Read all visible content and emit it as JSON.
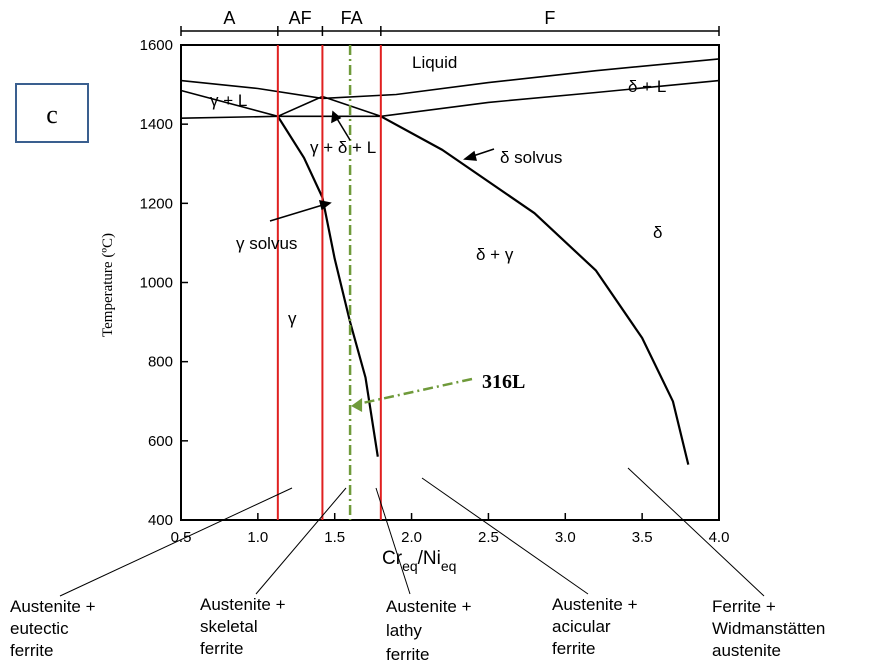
{
  "panel_label": "c",
  "chart_data": {
    "type": "phase-diagram",
    "xlabel_main": "Cr",
    "xlabel_sub1": "eq",
    "xlabel_slash": "/Ni",
    "xlabel_sub2": "eq",
    "ylabel": "Temperature (ºC)",
    "x_ticks": [
      "0.5",
      "1.0",
      "1.5",
      "2.0",
      "2.5",
      "3.0",
      "3.5",
      "4.0"
    ],
    "y_ticks": [
      "400",
      "600",
      "800",
      "1000",
      "1200",
      "1400",
      "1600"
    ],
    "xlim": [
      0.5,
      4.0
    ],
    "ylim": [
      400,
      1600
    ],
    "modes": [
      {
        "label": "A",
        "from": 0.5,
        "to": 1.13
      },
      {
        "label": "AF",
        "from": 1.13,
        "to": 1.42
      },
      {
        "label": "FA",
        "from": 1.42,
        "to": 1.8
      },
      {
        "label": "F",
        "from": 1.8,
        "to": 4.0
      }
    ],
    "mode_boundaries": [
      1.13,
      1.42,
      1.8
    ],
    "alloy": {
      "label": "316L",
      "x": 1.6
    },
    "region_labels": {
      "liquid": "Liquid",
      "delta_l": "δ + L",
      "gamma_l": "γ + L",
      "gamma_delta_l": "γ + δ + L",
      "delta_solvus": "δ solvus",
      "gamma_solvus": "γ solvus",
      "delta_gamma": "δ + γ",
      "delta": "δ",
      "gamma": "γ"
    },
    "curves": {
      "liquidus_upper": [
        [
          0.5,
          1510
        ],
        [
          1.0,
          1490
        ],
        [
          1.42,
          1465
        ],
        [
          1.9,
          1475
        ],
        [
          2.5,
          1505
        ],
        [
          3.2,
          1535
        ],
        [
          4.0,
          1565
        ]
      ],
      "liquidus_lower": [
        [
          0.5,
          1485
        ],
        [
          1.13,
          1420
        ],
        [
          1.42,
          1470
        ],
        [
          1.8,
          1420
        ],
        [
          2.5,
          1455
        ],
        [
          3.2,
          1480
        ],
        [
          4.0,
          1510
        ]
      ],
      "solidus": [
        [
          0.5,
          1415
        ],
        [
          1.13,
          1420
        ],
        [
          1.8,
          1420
        ]
      ],
      "gamma_solvus": [
        [
          1.13,
          1420
        ],
        [
          1.3,
          1315
        ],
        [
          1.42,
          1215
        ],
        [
          1.5,
          1060
        ],
        [
          1.6,
          900
        ],
        [
          1.7,
          760
        ],
        [
          1.78,
          560
        ]
      ],
      "delta_solvus": [
        [
          1.8,
          1420
        ],
        [
          2.2,
          1335
        ],
        [
          2.8,
          1175
        ],
        [
          3.2,
          1030
        ],
        [
          3.5,
          860
        ],
        [
          3.7,
          700
        ],
        [
          3.8,
          540
        ]
      ]
    }
  },
  "microstructures": [
    {
      "line1": "Austenite +",
      "line2": "eutectic",
      "line3": "ferrite"
    },
    {
      "line1": "Austenite +",
      "line2": "skeletal",
      "line3": "ferrite"
    },
    {
      "line1": "Austenite +",
      "line2": "lathy",
      "line3": "ferrite"
    },
    {
      "line1": "Austenite +",
      "line2": "acicular",
      "line3": "ferrite"
    },
    {
      "line1": "Ferrite +",
      "line2": "Widmanstätten",
      "line3": "austenite"
    }
  ]
}
